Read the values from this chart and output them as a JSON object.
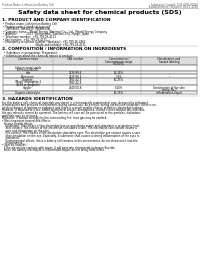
{
  "title": "Safety data sheet for chemical products (SDS)",
  "header_left": "Product Name: Lithium Ion Battery Cell",
  "header_right_line1": "Substance Control: SDS-GEN-00010",
  "header_right_line2": "Establishment / Revision: Dec.1.2016",
  "section1_title": "1. PRODUCT AND COMPANY IDENTIFICATION",
  "section1_items": [
    "• Product name: Lithium Ion Battery Cell",
    "• Product code: Cylindrical type cell",
    "    INR18650, INR18650, INR18650A",
    "• Company name:   Maxell Energy (America) Co., Ltd., Maxell Energy Company",
    "• Address:           2051  Kannonjima, Suminoe-City, Hyogo, Japan",
    "• Telephone number:  +81-799-26-4111",
    "• Fax number:  +81-799-26-4131",
    "• Emergency telephone number (Weekday): +81-799-26-2862",
    "                                     (Night and holiday): +81-799-26-4131"
  ],
  "section2_title": "2. COMPOSITION / INFORMATION ON INGREDIENTS",
  "section2_sub1": "• Substance or preparation: Preparation",
  "section2_sub2": "• Information about the chemical nature of product:",
  "col_headers": [
    "Common name",
    "CAS number",
    "Concentration /\nConcentration range\n(30-60%)",
    "Classification and\nhazard labeling"
  ],
  "table_rows": [
    [
      "Lithium metal oxide",
      "-",
      "",
      ""
    ],
    [
      "(LiMnxCoyNizO2)",
      "",
      "",
      ""
    ],
    [
      "Iron",
      "7439-89-6",
      "15-25%",
      "-"
    ],
    [
      "Aluminum",
      "7429-90-5",
      "2-5%",
      "-"
    ],
    [
      "Graphite",
      "7782-42-5",
      "10-25%",
      ""
    ],
    [
      "(Made in graphite-1",
      "7782-42-5",
      "",
      ""
    ],
    [
      "(A-99 or graphite)",
      "",
      "",
      ""
    ],
    [
      "Copper",
      "7440-50-8",
      "5-10%",
      "Sensitization of the skin\ngroup No.2"
    ],
    [
      "Organic electrolyte",
      "-",
      "10-25%",
      "Inflammation liquid"
    ]
  ],
  "section3_title": "3. HAZARDS IDENTIFICATION",
  "section3_lines": [
    "For this battery cell, chemical materials are stored in a hermetically sealed metal case, designed to withstand",
    "temperatures and pressure environments during normal use. As a result, during normal use conditions, there is no",
    "physical danger of ignition or explosion and there is a much smaller chance of battery electrolyte leakage.",
    "However, if exposed to a fire, added mechanical shocks, decomposed, vented electro without any miss use,",
    "the gas releases cannot be operated. The battery cell case will be punctured or the particles, hazardous",
    "materials may be released.",
    "Moreover, if heated strongly by the surrounding fire, toxic gas may be emitted."
  ],
  "section3_bullets": [
    "• Most important hazard and effects:",
    "  Human health effects:",
    "    Inhalation: The release of the electrolyte has an anesthesia action and stimulates a respiratory tract.",
    "    Skin contact: The release of the electrolyte stimulates a skin. The electrolyte skin contact causes a",
    "    sore and stimulation on the skin.",
    "    Eye contact: The release of the electrolyte stimulates eyes. The electrolyte eye contact causes a sore",
    "    and stimulation on the eye. Especially, a substance that causes a strong inflammation of the eyes is",
    "    contained.",
    "    Environmental effects: Since a battery cell remains in the environment, do not throw out it into the",
    "    environment.",
    "• Specific hazards:",
    "  If the electrolyte contacts with water, it will generate detrimental hydrogen fluoride.",
    "  Since the battery electrolyte is inflammable liquid, do not bring close to fire."
  ],
  "bg_color": "#ffffff",
  "text_color": "#000000",
  "gray_text": "#555555",
  "line_color": "#aaaaaa",
  "table_line_color": "#888888"
}
